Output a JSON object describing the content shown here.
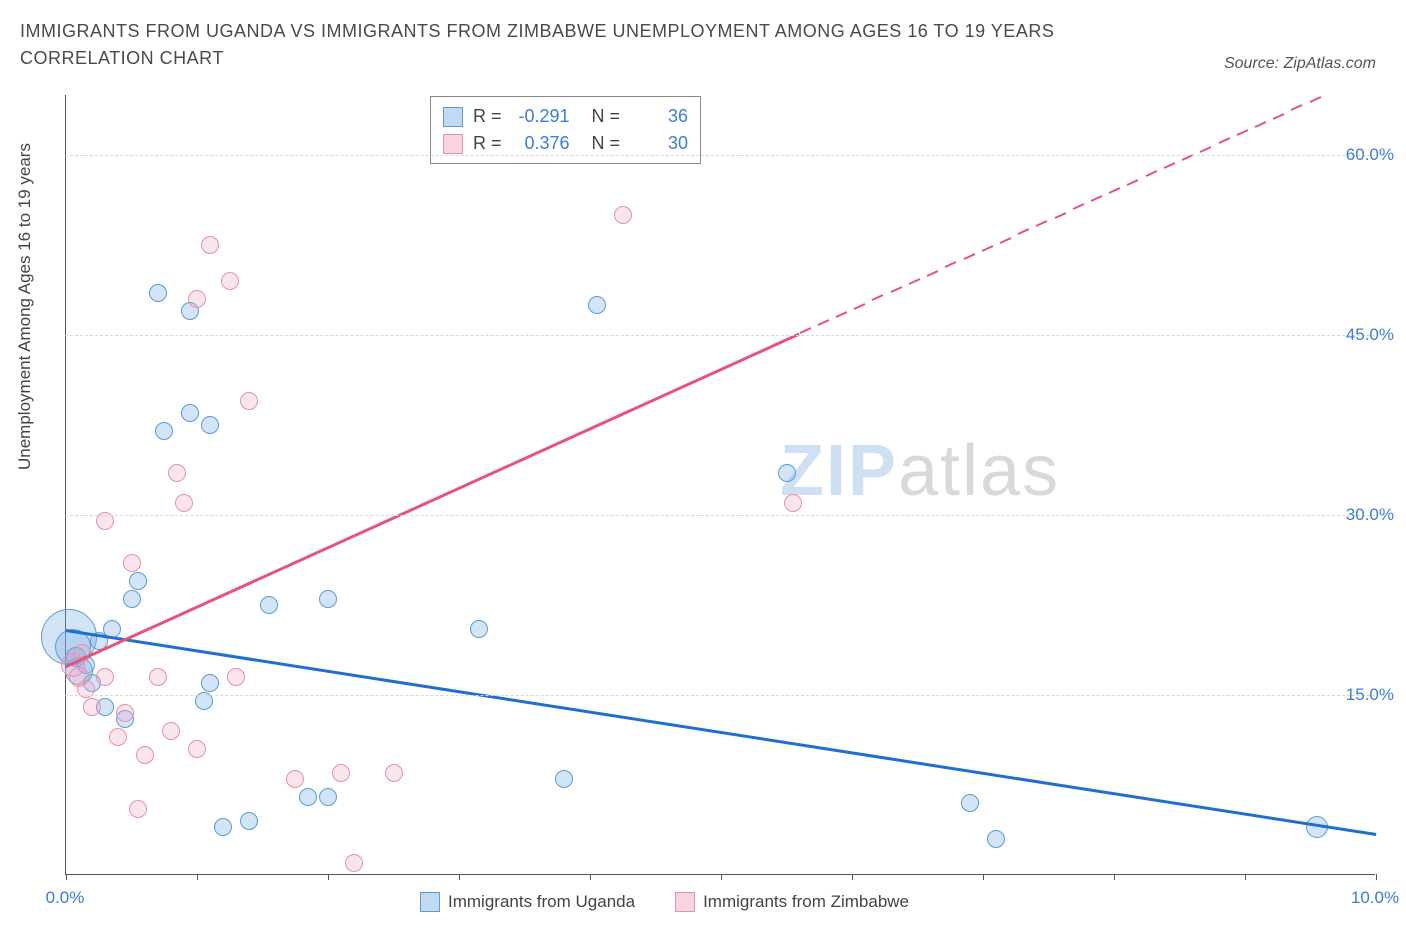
{
  "title": "IMMIGRANTS FROM UGANDA VS IMMIGRANTS FROM ZIMBABWE UNEMPLOYMENT AMONG AGES 16 TO 19 YEARS CORRELATION CHART",
  "source": "Source: ZipAtlas.com",
  "y_axis_label": "Unemployment Among Ages 16 to 19 years",
  "chart": {
    "type": "scatter",
    "xlim": [
      0,
      10
    ],
    "ylim": [
      0,
      65
    ],
    "x_ticks": [
      0,
      1,
      2,
      3,
      4,
      5,
      6,
      7,
      8,
      9,
      10
    ],
    "x_tick_labels": {
      "0": "0.0%",
      "10": "10.0%"
    },
    "y_gridlines": [
      15,
      30,
      45,
      60
    ],
    "y_tick_labels": [
      "15.0%",
      "30.0%",
      "45.0%",
      "60.0%"
    ],
    "background_color": "#ffffff",
    "grid_color": "#d8d8d8",
    "axis_label_color": "#3b7dd8",
    "point_radius": 9,
    "series": [
      {
        "name": "Immigrants from Uganda",
        "color_fill": "rgba(120,170,230,0.32)",
        "color_stroke": "#5a9bd8",
        "R": "-0.291",
        "N": "36",
        "trend": {
          "x1": 0,
          "y1": 20.5,
          "x2": 10,
          "y2": 3.5,
          "color": "#1f6fd1"
        },
        "points": [
          {
            "x": 0.02,
            "y": 19.8,
            "r": 28
          },
          {
            "x": 0.05,
            "y": 19.0,
            "r": 18
          },
          {
            "x": 0.1,
            "y": 17.0,
            "r": 14
          },
          {
            "x": 0.08,
            "y": 18.2,
            "r": 10
          },
          {
            "x": 0.15,
            "y": 17.5,
            "r": 9
          },
          {
            "x": 0.2,
            "y": 16.0,
            "r": 9
          },
          {
            "x": 0.25,
            "y": 19.5,
            "r": 9
          },
          {
            "x": 0.35,
            "y": 20.5,
            "r": 9
          },
          {
            "x": 0.3,
            "y": 14.0,
            "r": 9
          },
          {
            "x": 0.45,
            "y": 13.0,
            "r": 9
          },
          {
            "x": 0.5,
            "y": 23.0,
            "r": 9
          },
          {
            "x": 0.55,
            "y": 24.5,
            "r": 9
          },
          {
            "x": 0.7,
            "y": 48.5,
            "r": 9
          },
          {
            "x": 0.75,
            "y": 37.0,
            "r": 9
          },
          {
            "x": 0.95,
            "y": 38.5,
            "r": 9
          },
          {
            "x": 0.95,
            "y": 47.0,
            "r": 9
          },
          {
            "x": 1.05,
            "y": 14.5,
            "r": 9
          },
          {
            "x": 1.1,
            "y": 37.5,
            "r": 9
          },
          {
            "x": 1.1,
            "y": 16.0,
            "r": 9
          },
          {
            "x": 1.2,
            "y": 4.0,
            "r": 9
          },
          {
            "x": 1.4,
            "y": 4.5,
            "r": 9
          },
          {
            "x": 1.55,
            "y": 22.5,
            "r": 9
          },
          {
            "x": 1.85,
            "y": 6.5,
            "r": 9
          },
          {
            "x": 2.0,
            "y": 6.5,
            "r": 9
          },
          {
            "x": 2.0,
            "y": 23.0,
            "r": 9
          },
          {
            "x": 3.15,
            "y": 20.5,
            "r": 9
          },
          {
            "x": 3.8,
            "y": 8.0,
            "r": 9
          },
          {
            "x": 4.05,
            "y": 47.5,
            "r": 9
          },
          {
            "x": 5.5,
            "y": 33.5,
            "r": 9
          },
          {
            "x": 6.9,
            "y": 6.0,
            "r": 9
          },
          {
            "x": 7.1,
            "y": 3.0,
            "r": 9
          },
          {
            "x": 9.55,
            "y": 4.0,
            "r": 11
          }
        ]
      },
      {
        "name": "Immigrants from Zimbabwe",
        "color_fill": "rgba(240,160,190,0.28)",
        "color_stroke": "#e88fab",
        "R": "0.376",
        "N": "30",
        "trend": {
          "x1": 0,
          "y1": 17.5,
          "x2": 10,
          "y2": 67.0,
          "color": "#e3557c",
          "solid_until_x": 5.6
        },
        "points": [
          {
            "x": 0.05,
            "y": 17.5,
            "r": 12
          },
          {
            "x": 0.1,
            "y": 16.5,
            "r": 10
          },
          {
            "x": 0.15,
            "y": 15.5,
            "r": 9
          },
          {
            "x": 0.12,
            "y": 18.5,
            "r": 9
          },
          {
            "x": 0.2,
            "y": 14.0,
            "r": 9
          },
          {
            "x": 0.3,
            "y": 29.5,
            "r": 9
          },
          {
            "x": 0.3,
            "y": 16.5,
            "r": 9
          },
          {
            "x": 0.4,
            "y": 11.5,
            "r": 9
          },
          {
            "x": 0.45,
            "y": 13.5,
            "r": 9
          },
          {
            "x": 0.5,
            "y": 26.0,
            "r": 9
          },
          {
            "x": 0.55,
            "y": 5.5,
            "r": 9
          },
          {
            "x": 0.6,
            "y": 10.0,
            "r": 9
          },
          {
            "x": 0.7,
            "y": 16.5,
            "r": 9
          },
          {
            "x": 0.8,
            "y": 12.0,
            "r": 9
          },
          {
            "x": 0.85,
            "y": 33.5,
            "r": 9
          },
          {
            "x": 0.9,
            "y": 31.0,
            "r": 9
          },
          {
            "x": 1.0,
            "y": 48.0,
            "r": 9
          },
          {
            "x": 1.0,
            "y": 10.5,
            "r": 9
          },
          {
            "x": 1.1,
            "y": 52.5,
            "r": 9
          },
          {
            "x": 1.25,
            "y": 49.5,
            "r": 9
          },
          {
            "x": 1.3,
            "y": 16.5,
            "r": 9
          },
          {
            "x": 1.4,
            "y": 39.5,
            "r": 9
          },
          {
            "x": 1.75,
            "y": 8.0,
            "r": 9
          },
          {
            "x": 2.1,
            "y": 8.5,
            "r": 9
          },
          {
            "x": 2.5,
            "y": 8.5,
            "r": 9
          },
          {
            "x": 2.2,
            "y": 1.0,
            "r": 9
          },
          {
            "x": 4.25,
            "y": 55.0,
            "r": 9
          },
          {
            "x": 5.55,
            "y": 31.0,
            "r": 9
          }
        ]
      }
    ]
  },
  "legend_bottom": [
    "Immigrants from Uganda",
    "Immigrants from Zimbabwe"
  ],
  "watermark": {
    "zip": "ZIP",
    "atlas": "atlas"
  }
}
